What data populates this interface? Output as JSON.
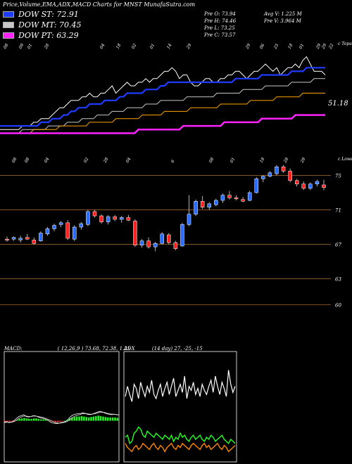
{
  "header": {
    "title": "Price,Volume,EMA,ADX,MACD Charts for MNST MunafaSutra.com"
  },
  "legend": [
    {
      "label": "DOW ST: 72.91",
      "color": "#1e3cff"
    },
    {
      "label": "DOW MT: 70.45",
      "color": "#c8c8c8"
    },
    {
      "label": "DOW PT: 63.29",
      "color": "#ff22ff"
    }
  ],
  "quote": {
    "open": "Pre   O: 73.94",
    "high": "Pre   H: 74.46",
    "low": "Pre   L: 73.25",
    "close": "Pre   C: 73.57",
    "avg_vol": "Avg V: 1.225  M",
    "pre_vol": "Pre   V: 3.964  M"
  },
  "chart_data": [
    {
      "type": "line",
      "panel": "ema",
      "top_label": "c Topa",
      "price_label": "51.18",
      "x_tick_labels": [
        "08",
        "09",
        "01",
        "28",
        "04",
        "18",
        "02",
        "01",
        "14",
        "29",
        "29",
        "06",
        "25",
        "18",
        "01",
        "29",
        "29",
        "22"
      ],
      "series": [
        {
          "color": "#ffffff",
          "values": [
            60,
            60,
            60,
            60,
            60,
            60,
            61,
            61,
            61,
            62,
            62,
            63,
            63,
            63,
            64,
            65,
            66,
            66,
            67,
            68,
            68,
            68,
            69,
            69,
            70,
            69,
            69,
            70,
            70,
            71,
            72,
            70,
            71,
            72,
            73,
            72,
            72,
            73,
            73,
            74,
            73,
            74,
            74,
            75,
            76,
            76,
            77,
            76,
            74,
            75,
            75,
            73,
            72,
            72,
            73,
            74,
            74,
            73,
            73,
            74,
            74,
            75,
            75,
            76,
            76,
            75,
            74,
            75,
            76,
            76,
            77,
            78,
            77,
            76,
            77,
            75,
            76,
            77,
            77,
            78,
            77,
            79,
            80,
            78,
            76,
            76,
            76,
            75
          ]
        },
        {
          "color": "#1e3cff",
          "values": [
            61,
            61,
            61,
            61,
            61,
            61,
            61,
            61,
            61,
            61,
            61,
            62,
            62,
            62,
            63,
            63,
            63,
            64,
            64,
            65,
            65,
            66,
            66,
            66,
            67,
            67,
            67,
            67,
            68,
            68,
            68,
            68,
            69,
            69,
            70,
            70,
            70,
            70,
            70,
            71,
            71,
            71,
            71,
            72,
            72,
            73,
            73,
            73,
            73,
            73,
            73,
            73,
            73,
            73,
            73,
            73,
            73,
            73,
            73,
            73,
            73,
            73,
            73,
            74,
            74,
            74,
            74,
            74,
            74,
            74,
            75,
            75,
            75,
            75,
            75,
            75,
            75,
            75,
            76,
            76,
            76,
            76,
            77,
            77,
            77,
            77,
            77,
            77
          ]
        },
        {
          "color": "#c8c8c8",
          "values": [
            59,
            59,
            59,
            59,
            59,
            59,
            60,
            60,
            60,
            60,
            60,
            60,
            60,
            61,
            61,
            61,
            61,
            61,
            62,
            62,
            62,
            62,
            63,
            63,
            63,
            63,
            64,
            64,
            64,
            64,
            65,
            65,
            65,
            65,
            66,
            66,
            66,
            66,
            66,
            67,
            67,
            67,
            67,
            68,
            68,
            68,
            68,
            68,
            68,
            68,
            69,
            69,
            69,
            69,
            69,
            69,
            69,
            69,
            70,
            70,
            70,
            70,
            70,
            70,
            70,
            71,
            71,
            71,
            71,
            71,
            71,
            72,
            72,
            72,
            72,
            72,
            72,
            72,
            73,
            73,
            73,
            73,
            73,
            73,
            74,
            74,
            74,
            74
          ]
        },
        {
          "color": "#ffa500",
          "values": [
            59,
            59,
            59,
            59,
            59,
            59,
            59,
            59,
            59,
            60,
            60,
            60,
            60,
            60,
            60,
            60,
            61,
            61,
            61,
            61,
            61,
            61,
            61,
            61,
            62,
            62,
            62,
            62,
            62,
            62,
            62,
            63,
            63,
            63,
            63,
            63,
            63,
            63,
            64,
            64,
            64,
            64,
            64,
            64,
            65,
            65,
            65,
            65,
            65,
            65,
            65,
            66,
            66,
            66,
            66,
            66,
            66,
            66,
            66,
            67,
            67,
            67,
            67,
            67,
            67,
            67,
            67,
            68,
            68,
            68,
            68,
            68,
            68,
            68,
            69,
            69,
            69,
            69,
            69,
            69,
            69,
            70,
            70,
            70,
            70,
            70,
            70,
            70
          ]
        },
        {
          "color": "#ff22ff",
          "values": [
            59,
            59,
            59,
            59,
            59,
            59,
            59,
            59,
            59,
            59,
            59,
            59,
            59,
            59,
            59,
            59,
            59,
            59,
            59,
            59,
            59,
            59,
            59,
            59,
            59,
            59,
            59,
            59,
            59,
            59,
            59,
            59,
            59,
            59,
            59,
            59,
            59,
            60,
            60,
            60,
            60,
            60,
            60,
            60,
            60,
            60,
            60,
            60,
            60,
            61,
            61,
            61,
            61,
            61,
            61,
            61,
            61,
            61,
            61,
            61,
            62,
            62,
            62,
            62,
            62,
            62,
            62,
            62,
            62,
            62,
            63,
            63,
            63,
            63,
            63,
            63,
            63,
            63,
            63,
            64,
            64,
            64,
            64,
            64,
            64,
            64,
            64,
            64
          ]
        }
      ]
    },
    {
      "type": "candlestick",
      "panel": "price",
      "top_label": "c Lower",
      "ylim": [
        57,
        77
      ],
      "y_ticks": [
        75,
        71,
        67,
        63,
        60
      ],
      "y_tick_labels": [
        "75",
        "71",
        "67",
        "63",
        "60"
      ],
      "x_tick_labels": [
        "08",
        "08",
        "04",
        "02",
        "28",
        "04",
        "6",
        "08",
        "01",
        "18",
        "28",
        "28"
      ],
      "candles": [
        {
          "o": 67.6,
          "h": 67.9,
          "l": 67.3,
          "c": 67.5
        },
        {
          "o": 67.6,
          "h": 67.9,
          "l": 67.4,
          "c": 67.8
        },
        {
          "o": 67.5,
          "h": 68.0,
          "l": 67.2,
          "c": 67.7
        },
        {
          "o": 67.8,
          "h": 68.2,
          "l": 67.5,
          "c": 67.6
        },
        {
          "o": 67.5,
          "h": 67.8,
          "l": 67.0,
          "c": 67.1
        },
        {
          "o": 67.4,
          "h": 68.5,
          "l": 67.3,
          "c": 68.3
        },
        {
          "o": 68.2,
          "h": 69.0,
          "l": 68.0,
          "c": 68.8
        },
        {
          "o": 68.8,
          "h": 69.4,
          "l": 68.5,
          "c": 69.2
        },
        {
          "o": 69.3,
          "h": 69.7,
          "l": 69.0,
          "c": 69.5
        },
        {
          "o": 69.5,
          "h": 69.8,
          "l": 67.5,
          "c": 67.7
        },
        {
          "o": 67.6,
          "h": 69.2,
          "l": 67.4,
          "c": 69.0
        },
        {
          "o": 69.0,
          "h": 69.6,
          "l": 68.7,
          "c": 69.4
        },
        {
          "o": 69.3,
          "h": 71.0,
          "l": 69.1,
          "c": 70.8
        },
        {
          "o": 70.8,
          "h": 71.0,
          "l": 70.1,
          "c": 70.3
        },
        {
          "o": 70.3,
          "h": 70.5,
          "l": 69.4,
          "c": 69.6
        },
        {
          "o": 69.6,
          "h": 70.4,
          "l": 69.3,
          "c": 70.2
        },
        {
          "o": 70.2,
          "h": 70.4,
          "l": 69.7,
          "c": 69.9
        },
        {
          "o": 69.9,
          "h": 70.3,
          "l": 69.5,
          "c": 70.1
        },
        {
          "o": 70.1,
          "h": 70.4,
          "l": 69.7,
          "c": 69.8
        },
        {
          "o": 69.7,
          "h": 69.9,
          "l": 66.7,
          "c": 66.9
        },
        {
          "o": 66.9,
          "h": 67.6,
          "l": 66.6,
          "c": 67.4
        },
        {
          "o": 67.4,
          "h": 67.8,
          "l": 66.5,
          "c": 66.7
        },
        {
          "o": 66.7,
          "h": 67.3,
          "l": 66.2,
          "c": 67.1
        },
        {
          "o": 67.1,
          "h": 68.4,
          "l": 67.0,
          "c": 68.2
        },
        {
          "o": 68.1,
          "h": 68.3,
          "l": 67.0,
          "c": 67.2
        },
        {
          "o": 67.2,
          "h": 67.4,
          "l": 66.3,
          "c": 66.5
        },
        {
          "o": 66.8,
          "h": 69.5,
          "l": 66.7,
          "c": 69.3
        },
        {
          "o": 69.3,
          "h": 72.7,
          "l": 69.1,
          "c": 70.5
        },
        {
          "o": 70.5,
          "h": 72.2,
          "l": 70.3,
          "c": 72.0
        },
        {
          "o": 72.0,
          "h": 72.6,
          "l": 71.1,
          "c": 71.3
        },
        {
          "o": 71.3,
          "h": 71.9,
          "l": 71.0,
          "c": 71.7
        },
        {
          "o": 71.6,
          "h": 72.3,
          "l": 71.4,
          "c": 72.1
        },
        {
          "o": 72.1,
          "h": 72.9,
          "l": 71.8,
          "c": 72.7
        },
        {
          "o": 72.7,
          "h": 73.2,
          "l": 72.2,
          "c": 72.4
        },
        {
          "o": 72.4,
          "h": 72.7,
          "l": 72.1,
          "c": 72.3
        },
        {
          "o": 72.2,
          "h": 72.5,
          "l": 71.9,
          "c": 72.0
        },
        {
          "o": 72.1,
          "h": 73.2,
          "l": 72.0,
          "c": 73.0
        },
        {
          "o": 73.0,
          "h": 74.8,
          "l": 72.9,
          "c": 74.6
        },
        {
          "o": 74.6,
          "h": 75.0,
          "l": 74.2,
          "c": 74.9
        },
        {
          "o": 74.9,
          "h": 75.5,
          "l": 74.8,
          "c": 75.3
        },
        {
          "o": 75.2,
          "h": 76.2,
          "l": 75.0,
          "c": 76.0
        },
        {
          "o": 76.0,
          "h": 76.2,
          "l": 75.3,
          "c": 75.5
        },
        {
          "o": 75.5,
          "h": 75.8,
          "l": 74.2,
          "c": 74.4
        },
        {
          "o": 74.4,
          "h": 74.6,
          "l": 73.7,
          "c": 74.0
        },
        {
          "o": 74.0,
          "h": 74.3,
          "l": 73.3,
          "c": 73.5
        },
        {
          "o": 73.5,
          "h": 74.2,
          "l": 73.3,
          "c": 74.0
        },
        {
          "o": 74.0,
          "h": 74.5,
          "l": 73.7,
          "c": 74.3
        },
        {
          "o": 73.9,
          "h": 74.5,
          "l": 73.3,
          "c": 73.6
        }
      ]
    },
    {
      "type": "line",
      "panel": "macd",
      "label": "MACD:",
      "params": "( 12,26,9 ) 73.68, 72.38, 1.25",
      "series": [
        {
          "color": "#ffffff",
          "values": [
            -0.3,
            -0.2,
            -0.4,
            -0.3,
            0.0,
            0.5,
            0.9,
            1.1,
            1.3,
            0.9,
            0.8,
            0.9,
            1.1,
            1.0,
            0.8,
            0.6,
            0.5,
            0.3,
            0.1,
            -0.3,
            -0.5,
            -0.6,
            -0.6,
            -0.4,
            -0.3,
            -0.2,
            0.2,
            0.8,
            1.2,
            1.4,
            1.5,
            1.5,
            1.7,
            1.6,
            1.4,
            1.3,
            1.4,
            1.6,
            1.8,
            2.0,
            1.9,
            1.7,
            1.5,
            1.4,
            1.3,
            1.4,
            1.3,
            1.25
          ]
        },
        {
          "color": "#dddddd",
          "values": [
            -0.4,
            -0.3,
            -0.3,
            -0.3,
            -0.2,
            0.1,
            0.5,
            0.8,
            1.0,
            1.0,
            0.9,
            0.9,
            1.0,
            1.0,
            0.9,
            0.8,
            0.7,
            0.5,
            0.3,
            0.1,
            -0.2,
            -0.4,
            -0.5,
            -0.5,
            -0.4,
            -0.3,
            -0.1,
            0.3,
            0.7,
            1.0,
            1.2,
            1.3,
            1.5,
            1.5,
            1.5,
            1.4,
            1.4,
            1.5,
            1.6,
            1.8,
            1.8,
            1.8,
            1.6,
            1.5,
            1.4,
            1.4,
            1.3,
            1.3
          ]
        }
      ],
      "histogram": [
        -0.3,
        -0.2,
        -0.2,
        -0.2,
        -0.1,
        0.2,
        0.4,
        0.5,
        0.6,
        0.5,
        0.4,
        0.4,
        0.5,
        0.5,
        0.4,
        0.3,
        0.3,
        0.2,
        0.1,
        -0.1,
        -0.2,
        -0.3,
        -0.3,
        -0.2,
        -0.1,
        0.0,
        0.2,
        0.5,
        0.7,
        0.8,
        0.9,
        0.9,
        1.0,
        0.9,
        0.8,
        0.7,
        0.8,
        0.9,
        1.0,
        1.1,
        1.0,
        0.9,
        0.8,
        0.7,
        0.7,
        0.7,
        0.7,
        0.6
      ]
    },
    {
      "type": "line",
      "panel": "adx",
      "label": "ADX",
      "params": "(14  day) 27, -25, -15",
      "series": [
        {
          "color": "#ffffff",
          "values": [
            60,
            70,
            62,
            55,
            72,
            68,
            58,
            74,
            66,
            60,
            70,
            64,
            76,
            62,
            58,
            66,
            72,
            60,
            68,
            74,
            62,
            70,
            78,
            60,
            66,
            72,
            64,
            80,
            58,
            70,
            66,
            74,
            62,
            68,
            60,
            72,
            66,
            62,
            70,
            76,
            64,
            80,
            70,
            62,
            74,
            68,
            60,
            86,
            72,
            64,
            70
          ]
        },
        {
          "color": "#22ff22",
          "values": [
            20,
            22,
            14,
            16,
            24,
            26,
            30,
            28,
            22,
            20,
            26,
            24,
            22,
            20,
            24,
            22,
            20,
            18,
            22,
            20,
            18,
            22,
            16,
            20,
            18,
            24,
            20,
            22,
            18,
            16,
            20,
            22,
            18,
            20,
            22,
            18,
            16,
            20,
            18,
            22,
            20,
            16,
            18,
            20,
            22,
            18,
            16,
            14,
            18,
            16,
            14
          ]
        },
        {
          "color": "#ff8800",
          "values": [
            14,
            10,
            8,
            6,
            10,
            12,
            8,
            10,
            14,
            12,
            10,
            8,
            12,
            14,
            10,
            8,
            12,
            10,
            6,
            10,
            12,
            14,
            10,
            8,
            12,
            10,
            14,
            12,
            10,
            8,
            12,
            14,
            12,
            10,
            8,
            12,
            14,
            10,
            12,
            8,
            10,
            12,
            14,
            10,
            8,
            12,
            10,
            6,
            8,
            10,
            12
          ]
        }
      ]
    }
  ]
}
